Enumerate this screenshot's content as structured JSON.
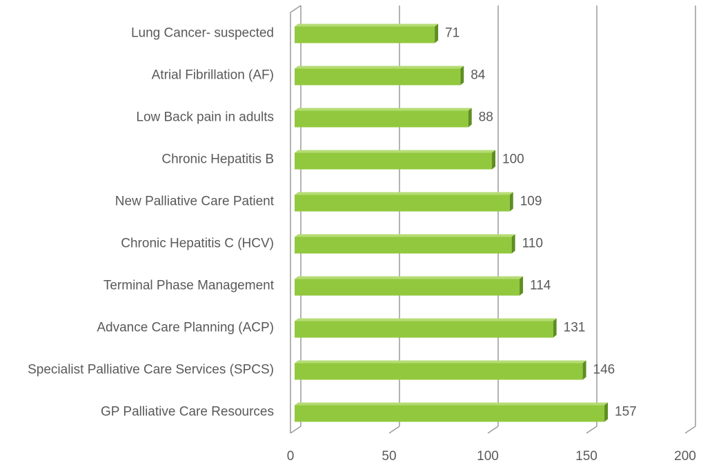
{
  "chart_data": {
    "type": "bar3d_horizontal",
    "categories": [
      "Lung Cancer- suspected",
      "Atrial Fibrillation (AF)",
      "Low Back pain in adults",
      "Chronic Hepatitis B",
      "New Palliative Care Patient",
      "Chronic Hepatitis C (HCV)",
      "Terminal Phase Management",
      "Advance Care Planning (ACP)",
      "Specialist Palliative Care Services (SPCS)",
      "GP Palliative Care Resources"
    ],
    "values": [
      71,
      84,
      88,
      100,
      109,
      110,
      114,
      131,
      146,
      157
    ],
    "color": "#92c83e",
    "xlim": [
      0,
      200
    ],
    "xticks": [
      0,
      50,
      100,
      150,
      200
    ],
    "grid": true
  }
}
